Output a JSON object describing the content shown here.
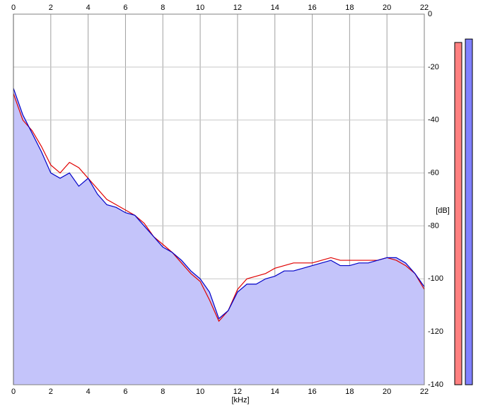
{
  "chart_data": {
    "type": "line",
    "x_label": "[kHz]",
    "y_label": "[dB]",
    "x": [
      0,
      0.5,
      1,
      1.5,
      2,
      2.5,
      3,
      3.5,
      4,
      4.5,
      5,
      5.5,
      6,
      6.5,
      7,
      7.5,
      8,
      8.5,
      9,
      9.5,
      10,
      10.5,
      11,
      11.5,
      12,
      12.5,
      13,
      13.5,
      14,
      14.5,
      15,
      15.5,
      16,
      16.5,
      17,
      17.5,
      18,
      18.5,
      19,
      19.5,
      20,
      20.5,
      21,
      21.5,
      22
    ],
    "series": [
      {
        "color": "#e00000",
        "values": [
          -30,
          -40,
          -44,
          -50,
          -57,
          -60,
          -56,
          -58,
          -62,
          -66,
          -70,
          -72,
          -74,
          -76,
          -79,
          -84,
          -87,
          -90,
          -94,
          -98,
          -101,
          -108,
          -116,
          -112,
          -104,
          -100,
          -99,
          -98,
          -96,
          -95,
          -94,
          -94,
          -94,
          -93,
          -92,
          -93,
          -93,
          -93,
          -93,
          -93,
          -92,
          -93,
          -95,
          -98,
          -104
        ]
      },
      {
        "color": "#0000c8",
        "fill": "#c4c4fa",
        "values": [
          -28,
          -38,
          -45,
          -52,
          -60,
          -62,
          -60,
          -65,
          -62,
          -68,
          -72,
          -73,
          -75,
          -76,
          -80,
          -84,
          -88,
          -90,
          -93,
          -97,
          -100,
          -105,
          -115,
          -112,
          -105,
          -102,
          -102,
          -100,
          -99,
          -97,
          -97,
          -96,
          -95,
          -94,
          -93,
          -95,
          -95,
          -94,
          -94,
          -93,
          -92,
          -92,
          -94,
          -98,
          -103
        ]
      }
    ],
    "meters": [
      {
        "color": "#ff8080",
        "value": -10.7
      },
      {
        "color": "#8080ff",
        "value": -9.4
      }
    ],
    "xlim": [
      0,
      22
    ],
    "xticks": [
      0,
      2,
      4,
      6,
      8,
      10,
      12,
      14,
      16,
      18,
      20,
      22
    ],
    "ylim": [
      -140,
      0
    ],
    "yticks": [
      0,
      -20,
      -40,
      -60,
      -80,
      -100,
      -120,
      -140
    ],
    "grid": true
  }
}
